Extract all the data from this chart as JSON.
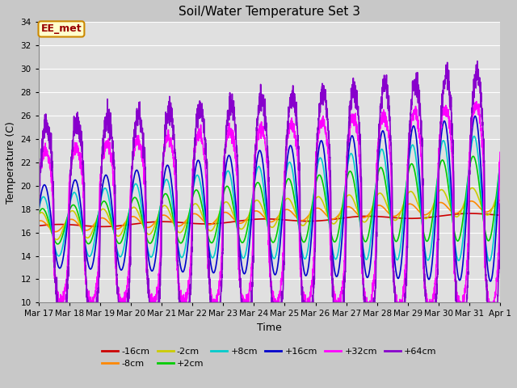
{
  "title": "Soil/Water Temperature Set 3",
  "xlabel": "Time",
  "ylabel": "Temperature (C)",
  "ylim": [
    10,
    34
  ],
  "xlim": [
    0,
    15
  ],
  "fig_bg_color": "#c8c8c8",
  "plot_bg_color": "#e0e0e0",
  "annotation_text": "EE_met",
  "annotation_bg": "#ffffcc",
  "annotation_border": "#cc8800",
  "annotation_text_color": "#990000",
  "x_tick_labels": [
    "Mar 17",
    "Mar 18",
    "Mar 19",
    "Mar 20",
    "Mar 21",
    "Mar 22",
    "Mar 23",
    "Mar 24",
    "Mar 25",
    "Mar 26",
    "Mar 27",
    "Mar 28",
    "Mar 29",
    "Mar 30",
    "Mar 31",
    "Apr 1"
  ],
  "series_order": [
    "-16cm",
    "-8cm",
    "-2cm",
    "+2cm",
    "+8cm",
    "+16cm",
    "+32cm",
    "+64cm"
  ],
  "series": {
    "-16cm": {
      "color": "#cc0000",
      "lw": 1.2
    },
    "-8cm": {
      "color": "#ff8800",
      "lw": 1.2
    },
    "-2cm": {
      "color": "#cccc00",
      "lw": 1.2
    },
    "+2cm": {
      "color": "#00cc00",
      "lw": 1.2
    },
    "+8cm": {
      "color": "#00cccc",
      "lw": 1.2
    },
    "+16cm": {
      "color": "#0000cc",
      "lw": 1.2
    },
    "+32cm": {
      "color": "#ff00ff",
      "lw": 1.2
    },
    "+64cm": {
      "color": "#8800cc",
      "lw": 1.2
    }
  },
  "grid_color": "#ffffff",
  "yticks": [
    10,
    12,
    14,
    16,
    18,
    20,
    22,
    24,
    26,
    28,
    30,
    32,
    34
  ],
  "legend_ncol": 6
}
